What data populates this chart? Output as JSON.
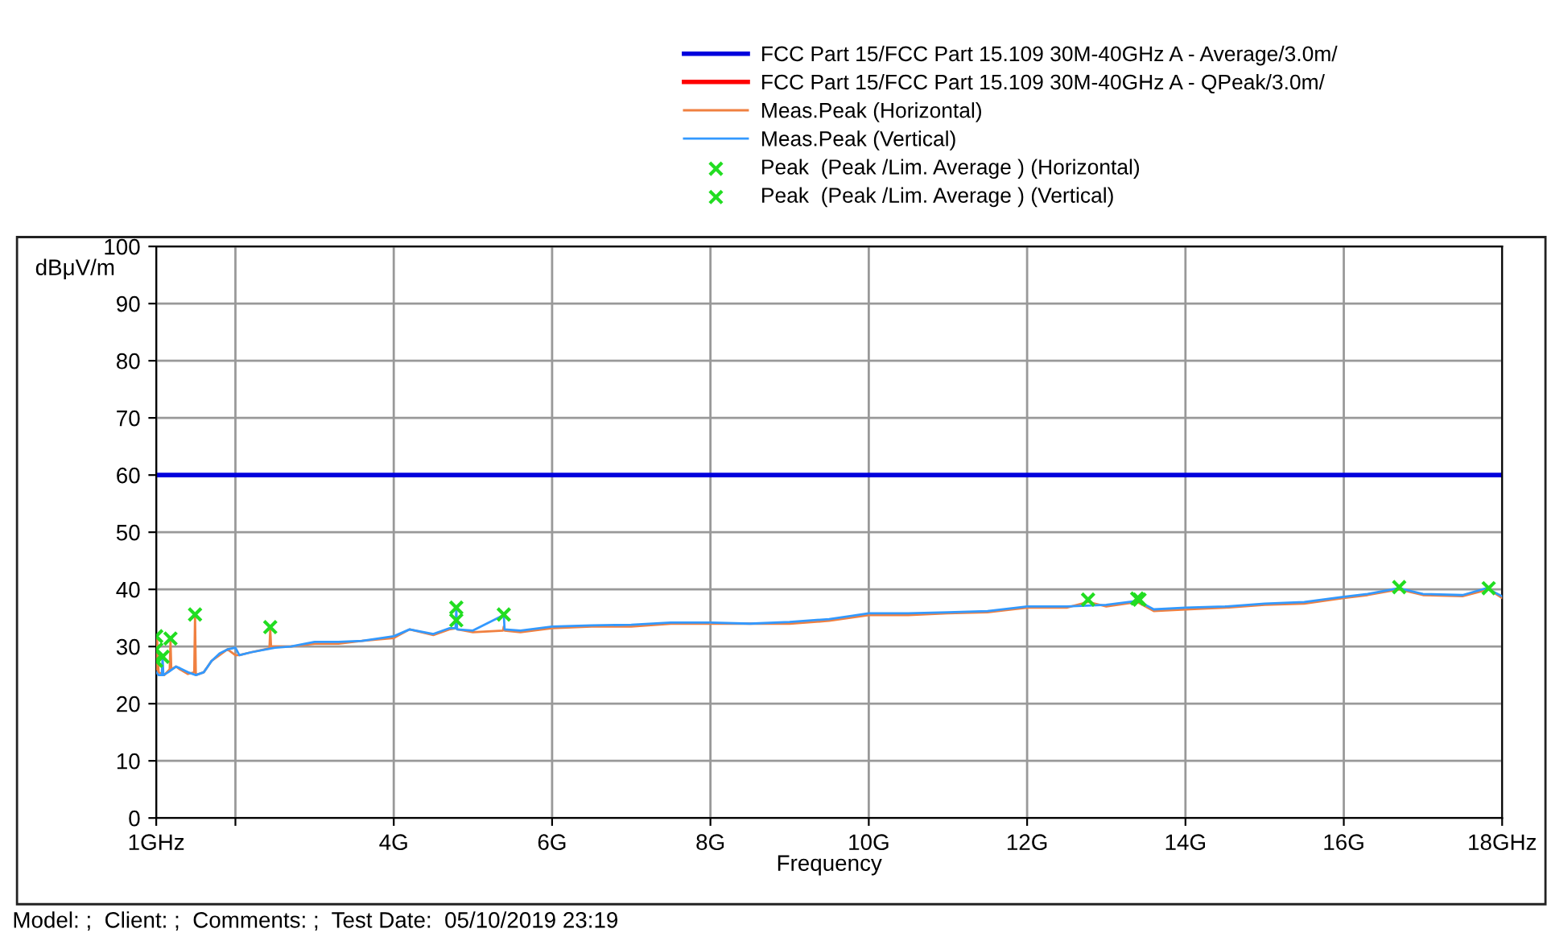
{
  "chart_data": {
    "type": "line",
    "xlabel": "Frequency",
    "ylabel": "dBμV/m",
    "xlim": [
      1,
      18
    ],
    "ylim": [
      0,
      100
    ],
    "xticks": [
      {
        "value": 1,
        "label": "1GHz"
      },
      {
        "value": 2,
        "label": null
      },
      {
        "value": 4,
        "label": "4G"
      },
      {
        "value": 6,
        "label": "6G"
      },
      {
        "value": 8,
        "label": "8G"
      },
      {
        "value": 10,
        "label": "10G"
      },
      {
        "value": 12,
        "label": "12G"
      },
      {
        "value": 14,
        "label": "14G"
      },
      {
        "value": 16,
        "label": "16G"
      },
      {
        "value": 18,
        "label": "18GHz"
      }
    ],
    "yticks": [
      0,
      10,
      20,
      30,
      40,
      50,
      60,
      70,
      80,
      90,
      100
    ],
    "grid": true,
    "legend": "top right",
    "annotations": [
      "Model: ;  Client: ;  Comments: ;  Test Date:  05/10/2019 23:19"
    ],
    "series": [
      {
        "name": "FCC Part 15/FCC Part 15.109 30M-40GHz A - Average/3.0m/",
        "color": "#0000dd",
        "x": [
          1,
          18
        ],
        "values": [
          60,
          60
        ]
      },
      {
        "name": "FCC Part 15/FCC Part 15.109 30M-40GHz A - QPeak/3.0m/",
        "color": "#ff0000"
      },
      {
        "name": "Meas.Peak (Horizontal)",
        "color": "#f08040",
        "x": [
          1.0,
          1.01,
          1.03,
          1.1,
          1.17,
          1.18,
          1.19,
          1.25,
          1.3,
          1.4,
          1.48,
          1.49,
          1.5,
          1.6,
          1.7,
          1.8,
          1.9,
          2.0,
          2.05,
          2.2,
          2.43,
          2.44,
          2.45,
          2.7,
          3.0,
          3.3,
          3.6,
          4.0,
          4.2,
          4.5,
          4.7,
          4.79,
          4.81,
          5.0,
          5.38,
          5.39,
          5.4,
          5.6,
          6.0,
          6.5,
          7.0,
          7.5,
          8.0,
          8.5,
          9.0,
          9.5,
          10.0,
          10.5,
          11.0,
          11.5,
          12.0,
          12.5,
          12.77,
          13.0,
          13.39,
          13.6,
          14.0,
          14.5,
          15.0,
          15.5,
          16.0,
          16.3,
          16.7,
          17.0,
          17.5,
          17.83,
          18.0
        ],
        "values": [
          26,
          31.5,
          25.5,
          25,
          26,
          31,
          26,
          26.5,
          26,
          25.2,
          25.5,
          35.5,
          25,
          25.5,
          27.5,
          28.5,
          29.5,
          28.5,
          28.5,
          29,
          29.7,
          33,
          30,
          30,
          30.5,
          30.5,
          31,
          31.5,
          33,
          32,
          33,
          33.2,
          33,
          32.5,
          32.8,
          33.5,
          32.8,
          32.5,
          33.2,
          33.5,
          33.5,
          34,
          34,
          34,
          34,
          34.5,
          35.5,
          35.5,
          35.8,
          36,
          36.8,
          36.8,
          37.8,
          37,
          37.8,
          36.2,
          36.5,
          36.8,
          37.3,
          37.5,
          38.5,
          39,
          40,
          39,
          38.8,
          40,
          38.5
        ]
      },
      {
        "name": "Meas.Peak (Vertical)",
        "color": "#3399ff",
        "x": [
          1.0,
          1.03,
          1.07,
          1.08,
          1.09,
          1.15,
          1.25,
          1.3,
          1.4,
          1.5,
          1.6,
          1.7,
          1.8,
          1.9,
          2.0,
          2.05,
          2.2,
          2.5,
          2.7,
          3.0,
          3.3,
          3.6,
          4.0,
          4.2,
          4.5,
          4.7,
          4.78,
          4.79,
          4.8,
          5.0,
          5.39,
          5.4,
          5.6,
          6.0,
          6.5,
          7.0,
          7.5,
          8.0,
          8.5,
          9.0,
          9.5,
          10.0,
          10.5,
          11.0,
          11.5,
          12.0,
          12.5,
          13.0,
          13.4,
          13.6,
          14.0,
          14.5,
          15.0,
          15.5,
          16.0,
          16.3,
          16.7,
          17.0,
          17.5,
          17.8,
          18.0
        ],
        "values": [
          25.5,
          25,
          25,
          28,
          25,
          25.5,
          26.5,
          26.2,
          25.5,
          25,
          25.5,
          27.5,
          28.8,
          29.5,
          29.8,
          28.5,
          29,
          29.8,
          30,
          30.8,
          30.8,
          31,
          31.8,
          33,
          32.2,
          33.2,
          33.2,
          36.5,
          33,
          32.8,
          35.5,
          33,
          32.8,
          33.5,
          33.7,
          33.8,
          34.2,
          34.2,
          34,
          34.3,
          34.8,
          35.8,
          35.8,
          36,
          36.2,
          37,
          37,
          37.3,
          38,
          36.5,
          36.8,
          37,
          37.5,
          37.8,
          38.7,
          39.2,
          40.2,
          39.2,
          39,
          40.2,
          38.8
        ]
      },
      {
        "name": "Peak  (Peak /Lim. Average ) (Horizontal)",
        "color": "#22dd22",
        "type": "scatter",
        "marker": "cross",
        "x": [
          1.0,
          1.0,
          1.18,
          1.49,
          2.44,
          4.79,
          12.77,
          13.39,
          16.7,
          17.83
        ],
        "values": [
          31.8,
          27.5,
          31.4,
          35.6,
          33.4,
          34.6,
          38.2,
          38.4,
          40.4,
          40.2
        ]
      },
      {
        "name": "Peak  (Peak /Lim. Average ) (Vertical)",
        "color": "#22dd22",
        "type": "scatter",
        "marker": "cross",
        "x": [
          1.0,
          1.08,
          4.79,
          5.39,
          13.42
        ],
        "values": [
          29.5,
          28.2,
          36.8,
          35.6,
          38.2
        ]
      }
    ]
  }
}
